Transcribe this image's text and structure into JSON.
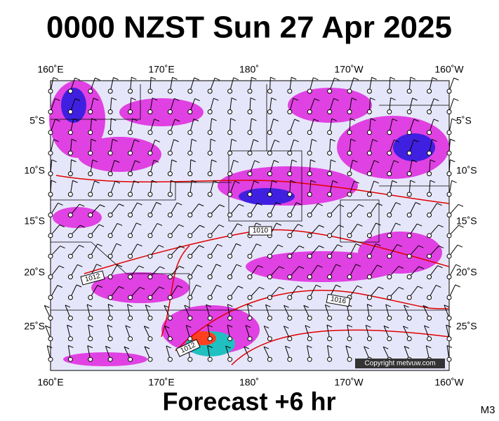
{
  "title": "0000 NZST Sun 27 Apr 2025",
  "footer": "Forecast +6 hr",
  "corner_label": "M3",
  "copyright": "Copyright metvuw.com",
  "longitude_labels": [
    "160˚E",
    "170˚E",
    "180˚",
    "170˚W",
    "160˚W"
  ],
  "latitude_labels": [
    "5˚S",
    "10˚S",
    "15˚S",
    "20˚S",
    "25˚S"
  ],
  "isobar_labels": [
    "1010",
    "1012",
    "1016",
    "1012"
  ]
}
